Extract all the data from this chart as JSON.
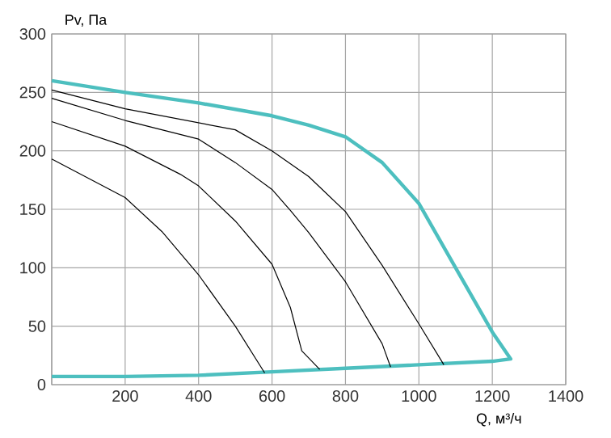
{
  "chart_data": {
    "type": "line",
    "xlabel": "Q, м³/ч",
    "ylabel": "Pv, Па",
    "xlim": [
      0,
      1400
    ],
    "ylim": [
      0,
      300
    ],
    "xticks": [
      {
        "value": 0,
        "label": null
      },
      200,
      400,
      600,
      800,
      1000,
      1200,
      1400
    ],
    "yticks": [
      0,
      50,
      100,
      150,
      200,
      250,
      300
    ],
    "grid": true,
    "line_style": "solid",
    "marker": "none",
    "series": [
      {
        "color": "#4dbfbf",
        "x": [
          0,
          200,
          400,
          600,
          700,
          800,
          900,
          1000,
          1100,
          1200,
          1250,
          1200,
          800,
          600,
          400,
          200,
          0
        ],
        "values": [
          260,
          250,
          241,
          230,
          222,
          212,
          190,
          155,
          100,
          45,
          22,
          20,
          14,
          11,
          8,
          7,
          7
        ]
      },
      {
        "color": "#000000",
        "x": [
          0,
          200,
          400,
          500,
          600,
          700,
          800,
          900,
          1000,
          1068
        ],
        "values": [
          252,
          236,
          224,
          218,
          200,
          178,
          148,
          102,
          52,
          17
        ]
      },
      {
        "color": "#000000",
        "x": [
          0,
          200,
          400,
          500,
          600,
          650,
          700,
          800,
          900,
          923
        ],
        "values": [
          245,
          226,
          210,
          190,
          167,
          149,
          130,
          88,
          35,
          15
        ]
      },
      {
        "color": "#000000",
        "x": [
          0,
          200,
          350,
          400,
          500,
          600,
          650,
          681,
          730
        ],
        "values": [
          225,
          204,
          180,
          170,
          140,
          103,
          66,
          29,
          13
        ]
      },
      {
        "color": "#000000",
        "x": [
          0,
          200,
          300,
          400,
          500,
          580
        ],
        "values": [
          193,
          160,
          131,
          94,
          50,
          10
        ]
      }
    ]
  }
}
